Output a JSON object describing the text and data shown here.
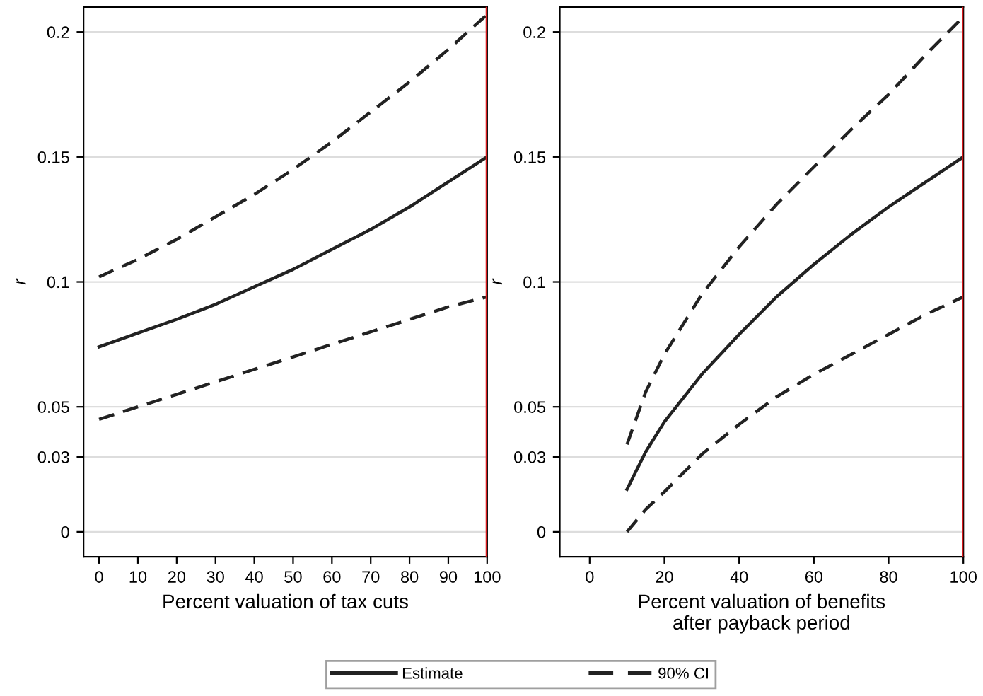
{
  "chart_data": [
    {
      "type": "line",
      "xlabel": "Percent valuation of tax cuts",
      "ylabel": "r",
      "legend": "bottom",
      "grid": "y",
      "x": [
        0,
        10,
        20,
        30,
        40,
        50,
        60,
        70,
        80,
        90,
        100
      ],
      "xlim": [
        -4,
        100
      ],
      "xticks": [
        0,
        10,
        20,
        30,
        40,
        50,
        60,
        70,
        80,
        90,
        100
      ],
      "ylim": [
        -0.01,
        0.21
      ],
      "yticks": [
        0,
        0.03,
        0.05,
        0.1,
        0.15,
        0.2
      ],
      "ref_lines": [
        {
          "axis": "x",
          "value": 100,
          "color": "#d7191c"
        }
      ],
      "series": [
        {
          "name": "Estimate",
          "color": "#222222",
          "line_style": "solid",
          "values": [
            0.074,
            0.0795,
            0.085,
            0.091,
            0.098,
            0.105,
            0.113,
            0.121,
            0.13,
            0.14,
            0.15
          ]
        },
        {
          "name": "90% CI",
          "color": "#222222",
          "line_style": "dashed",
          "values": [
            0.102,
            0.109,
            0.117,
            0.126,
            0.135,
            0.145,
            0.156,
            0.168,
            0.18,
            0.193,
            0.207
          ]
        },
        {
          "color": "#222222",
          "line_style": "dashed",
          "values": [
            0.045,
            0.05,
            0.055,
            0.06,
            0.065,
            0.07,
            0.075,
            0.08,
            0.085,
            0.09,
            0.094
          ]
        }
      ]
    },
    {
      "type": "line",
      "xlabel": "Percent valuation of benefits\nafter payback period",
      "ylabel": "r",
      "grid": "y",
      "x": [
        10,
        15,
        20,
        30,
        40,
        50,
        60,
        70,
        80,
        90,
        100
      ],
      "xlim": [
        -8,
        100
      ],
      "xticks": [
        0,
        20,
        40,
        60,
        80,
        100
      ],
      "ylim": [
        -0.01,
        0.21
      ],
      "yticks": [
        0,
        0.03,
        0.05,
        0.1,
        0.15,
        0.2
      ],
      "ref_lines": [
        {
          "axis": "x",
          "value": 100,
          "color": "#d7191c"
        }
      ],
      "series": [
        {
          "color": "#222222",
          "line_style": "solid",
          "values": [
            0.017,
            0.032,
            0.044,
            0.063,
            0.079,
            0.094,
            0.107,
            0.119,
            0.13,
            0.14,
            0.15
          ]
        },
        {
          "color": "#222222",
          "line_style": "dashed",
          "values": [
            0.035,
            0.056,
            0.071,
            0.095,
            0.114,
            0.131,
            0.146,
            0.161,
            0.175,
            0.191,
            0.206
          ]
        },
        {
          "color": "#222222",
          "line_style": "dashed",
          "values": [
            0.0,
            0.009,
            0.016,
            0.031,
            0.043,
            0.054,
            0.063,
            0.071,
            0.079,
            0.087,
            0.094
          ]
        }
      ]
    }
  ]
}
